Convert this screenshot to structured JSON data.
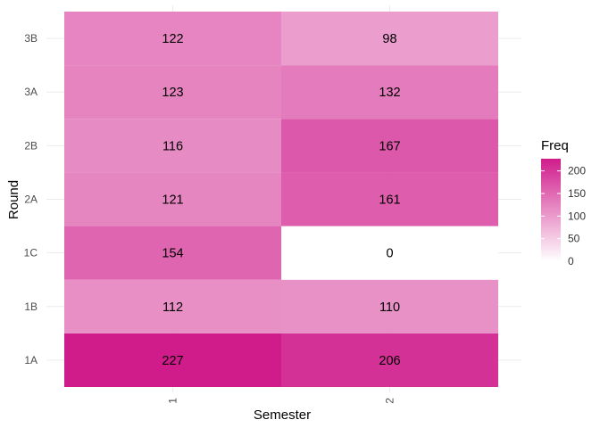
{
  "chart_data": {
    "type": "heatmap",
    "x": [
      "1",
      "2"
    ],
    "y": [
      "1A",
      "1B",
      "1C",
      "2A",
      "2B",
      "3A",
      "3B"
    ],
    "values": [
      {
        "x": "1",
        "y": "1A",
        "value": 227
      },
      {
        "x": "1",
        "y": "1B",
        "value": 112
      },
      {
        "x": "1",
        "y": "1C",
        "value": 154
      },
      {
        "x": "1",
        "y": "2A",
        "value": 121
      },
      {
        "x": "1",
        "y": "2B",
        "value": 116
      },
      {
        "x": "1",
        "y": "3A",
        "value": 123
      },
      {
        "x": "1",
        "y": "3B",
        "value": 122
      },
      {
        "x": "2",
        "y": "1A",
        "value": 206
      },
      {
        "x": "2",
        "y": "1B",
        "value": 110
      },
      {
        "x": "2",
        "y": "1C",
        "value": 0
      },
      {
        "x": "2",
        "y": "2A",
        "value": 161
      },
      {
        "x": "2",
        "y": "2B",
        "value": 167
      },
      {
        "x": "2",
        "y": "3A",
        "value": 132
      },
      {
        "x": "2",
        "y": "3B",
        "value": 98
      }
    ],
    "xlabel": "Semester",
    "ylabel": "Round",
    "legend": {
      "title": "Freq",
      "ticks": [
        "0",
        "50",
        "100",
        "150",
        "200"
      ],
      "range": [
        0,
        227
      ],
      "placement": "right"
    },
    "colors": {
      "low": "#ffffff",
      "high": "#d01c8b"
    },
    "grid": true
  }
}
